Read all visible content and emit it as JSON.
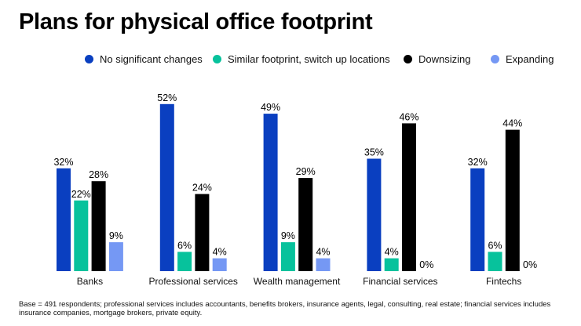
{
  "chart_data": {
    "type": "bar",
    "title": "Plans for physical office footprint",
    "categories": [
      "Banks",
      "Professional services",
      "Wealth management",
      "Financial services",
      "Fintechs"
    ],
    "series": [
      {
        "name": "No significant changes",
        "color": "#0a3fc0",
        "values": [
          32,
          52,
          49,
          35,
          32
        ]
      },
      {
        "name": "Similar footprint, switch up locations",
        "color": "#07c29c",
        "values": [
          22,
          6,
          9,
          4,
          6
        ]
      },
      {
        "name": "Downsizing",
        "color": "#000000",
        "values": [
          28,
          24,
          29,
          46,
          44
        ]
      },
      {
        "name": "Expanding",
        "color": "#7598f4",
        "values": [
          9,
          4,
          4,
          0,
          0
        ]
      }
    ],
    "value_suffix": "%",
    "ylim": [
      0,
      55
    ],
    "grid": false,
    "legend_position": "top",
    "footnote": "Base = 491 respondents; professional services includes accountants, benefits brokers, insurance agents, legal, consulting, real estate; financial services includes insurance companies, mortgage brokers, private equity."
  }
}
